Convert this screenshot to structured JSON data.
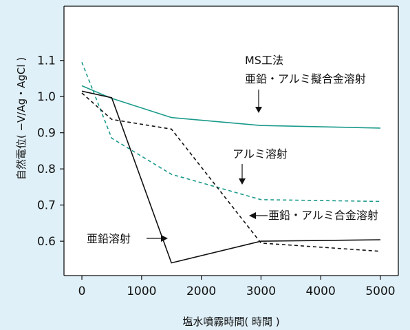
{
  "chart_data": {
    "type": "line",
    "xlabel": "塩水噴霧時間( 時間 )",
    "ylabel": "自然電位( −V/Ag・AgCl )",
    "xlim": [
      -300,
      5300
    ],
    "ylim": [
      0.505,
      1.25
    ],
    "xticks": [
      0,
      1000,
      2000,
      3000,
      4000,
      5000
    ],
    "yticks": [
      0.6,
      0.7,
      0.8,
      0.9,
      1.0,
      1.1
    ],
    "xtick_labels": [
      "0",
      "1000",
      "2000",
      "3000",
      "4000",
      "5000"
    ],
    "ytick_labels": [
      "0.6",
      "0.7",
      "0.8",
      "0.9",
      "1.0",
      "1.1"
    ],
    "series": [
      {
        "name": "MS工法 亜鉛・アルミ擬合金溶射",
        "color": "#1a9a8a",
        "dash": "solid",
        "x": [
          0,
          500,
          1500,
          3000,
          5000
        ],
        "y": [
          1.03,
          0.995,
          0.942,
          0.92,
          0.913
        ]
      },
      {
        "name": "アルミ溶射",
        "color": "#1a9a8a",
        "dash": "dashed",
        "x": [
          0,
          500,
          1500,
          3000,
          5000
        ],
        "y": [
          1.095,
          0.885,
          0.785,
          0.715,
          0.71
        ]
      },
      {
        "name": "亜鉛・アルミ合金溶射",
        "color": "#111111",
        "dash": "dashed",
        "x": [
          0,
          500,
          1500,
          3000,
          5000
        ],
        "y": [
          1.01,
          0.937,
          0.91,
          0.595,
          0.572
        ]
      },
      {
        "name": "亜鉛溶射",
        "color": "#111111",
        "dash": "solid",
        "x": [
          0,
          500,
          1500,
          3000,
          5000
        ],
        "y": [
          1.015,
          0.997,
          0.54,
          0.6,
          0.604
        ]
      }
    ],
    "annotations": [
      {
        "line1": "MS工法",
        "line2": "亜鉛・アルミ擬合金溶射"
      },
      {
        "text": "アルミ溶射"
      },
      {
        "text": "亜鉛・アルミ合金溶射"
      },
      {
        "text": "亜鉛溶射"
      }
    ]
  }
}
